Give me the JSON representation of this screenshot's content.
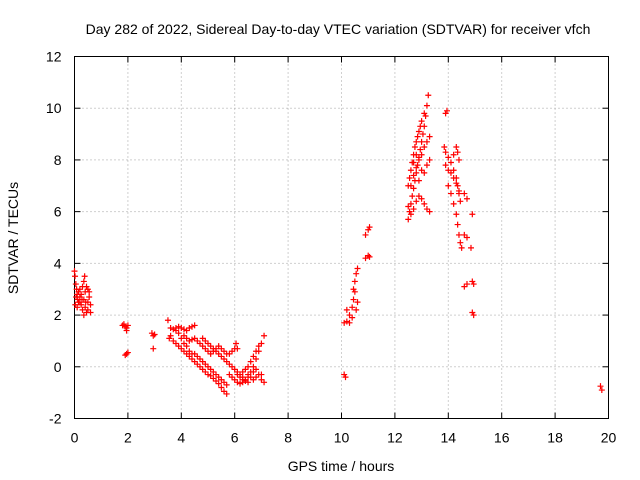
{
  "chart_data": {
    "type": "scatter",
    "title": "Day 282 of 2022, Sidereal Day-to-day VTEC variation (SDTVAR) for receiver vfch",
    "xlabel": "GPS time / hours",
    "ylabel": "SDTVAR / TECUs",
    "xlim": [
      0,
      20
    ],
    "ylim": [
      -2,
      12
    ],
    "xticks": [
      0,
      2,
      4,
      6,
      8,
      10,
      12,
      14,
      16,
      18,
      20
    ],
    "yticks": [
      -2,
      0,
      2,
      4,
      6,
      8,
      10,
      12
    ],
    "grid": true,
    "marker": "+",
    "color": "#ff0000",
    "series": [
      {
        "name": "SDTVAR",
        "points": [
          [
            0.0,
            3.7
          ],
          [
            0.02,
            3.5
          ],
          [
            0.05,
            3.2
          ],
          [
            0.08,
            3.0
          ],
          [
            0.1,
            2.8
          ],
          [
            0.12,
            2.6
          ],
          [
            0.15,
            2.5
          ],
          [
            0.03,
            2.4
          ],
          [
            0.06,
            2.7
          ],
          [
            0.1,
            2.3
          ],
          [
            0.15,
            2.9
          ],
          [
            0.2,
            2.5
          ],
          [
            0.25,
            2.8
          ],
          [
            0.3,
            3.1
          ],
          [
            0.35,
            3.3
          ],
          [
            0.38,
            3.5
          ],
          [
            0.2,
            3.0
          ],
          [
            0.25,
            2.4
          ],
          [
            0.3,
            2.2
          ],
          [
            0.35,
            2.6
          ],
          [
            0.4,
            2.9
          ],
          [
            0.45,
            3.1
          ],
          [
            0.4,
            2.3
          ],
          [
            0.45,
            2.1
          ],
          [
            0.5,
            2.2
          ],
          [
            0.5,
            2.5
          ],
          [
            0.55,
            2.7
          ],
          [
            0.6,
            2.4
          ],
          [
            0.6,
            2.1
          ],
          [
            0.55,
            2.9
          ],
          [
            0.5,
            3.0
          ],
          [
            0.35,
            2.0
          ],
          [
            0.2,
            2.7
          ],
          [
            0.28,
            2.6
          ],
          [
            0.42,
            2.5
          ],
          [
            1.8,
            1.6
          ],
          [
            1.85,
            1.65
          ],
          [
            1.9,
            1.55
          ],
          [
            1.95,
            1.5
          ],
          [
            2.0,
            1.6
          ],
          [
            1.95,
            1.4
          ],
          [
            1.9,
            0.45
          ],
          [
            1.95,
            0.5
          ],
          [
            2.0,
            0.55
          ],
          [
            2.9,
            1.3
          ],
          [
            2.95,
            1.2
          ],
          [
            3.0,
            1.25
          ],
          [
            2.95,
            0.7
          ],
          [
            3.5,
            1.8
          ],
          [
            3.55,
            1.1
          ],
          [
            3.6,
            1.2
          ],
          [
            3.7,
            1.0
          ],
          [
            3.8,
            0.9
          ],
          [
            3.9,
            0.8
          ],
          [
            4.0,
            0.7
          ],
          [
            4.1,
            0.6
          ],
          [
            4.2,
            0.5
          ],
          [
            4.3,
            0.4
          ],
          [
            4.4,
            0.3
          ],
          [
            4.5,
            0.2
          ],
          [
            4.6,
            0.1
          ],
          [
            4.7,
            0.0
          ],
          [
            4.8,
            -0.1
          ],
          [
            4.9,
            -0.2
          ],
          [
            5.0,
            -0.3
          ],
          [
            5.1,
            -0.35
          ],
          [
            5.2,
            -0.45
          ],
          [
            5.3,
            -0.55
          ],
          [
            5.4,
            -0.65
          ],
          [
            5.5,
            -0.8
          ],
          [
            5.6,
            -0.95
          ],
          [
            5.7,
            -1.05
          ],
          [
            3.8,
            1.4
          ],
          [
            3.9,
            1.3
          ],
          [
            4.0,
            1.1
          ],
          [
            4.1,
            0.9
          ],
          [
            4.2,
            0.8
          ],
          [
            4.3,
            0.6
          ],
          [
            4.4,
            0.5
          ],
          [
            4.5,
            0.5
          ],
          [
            4.6,
            0.4
          ],
          [
            4.7,
            0.3
          ],
          [
            4.8,
            0.2
          ],
          [
            4.9,
            0.1
          ],
          [
            5.0,
            0.0
          ],
          [
            5.1,
            -0.1
          ],
          [
            5.2,
            -0.2
          ],
          [
            5.3,
            -0.3
          ],
          [
            5.4,
            -0.4
          ],
          [
            5.5,
            -0.5
          ],
          [
            5.6,
            -0.6
          ],
          [
            5.7,
            -0.7
          ],
          [
            3.6,
            1.5
          ],
          [
            3.7,
            1.45
          ],
          [
            3.8,
            1.5
          ],
          [
            3.9,
            1.55
          ],
          [
            4.0,
            1.5
          ],
          [
            4.1,
            1.45
          ],
          [
            4.2,
            1.4
          ],
          [
            4.3,
            1.5
          ],
          [
            4.4,
            1.55
          ],
          [
            4.5,
            1.6
          ],
          [
            4.1,
            1.2
          ],
          [
            4.2,
            1.1
          ],
          [
            4.3,
            1.0
          ],
          [
            4.4,
            1.05
          ],
          [
            4.5,
            1.1
          ],
          [
            4.6,
            1.0
          ],
          [
            4.7,
            0.9
          ],
          [
            4.8,
            0.8
          ],
          [
            4.8,
            1.1
          ],
          [
            4.9,
            1.0
          ],
          [
            5.0,
            0.9
          ],
          [
            5.1,
            0.8
          ],
          [
            5.2,
            0.7
          ],
          [
            5.3,
            0.6
          ],
          [
            5.4,
            0.5
          ],
          [
            5.5,
            0.4
          ],
          [
            5.6,
            0.3
          ],
          [
            5.7,
            0.2
          ],
          [
            5.8,
            0.1
          ],
          [
            5.9,
            0.0
          ],
          [
            6.0,
            -0.1
          ],
          [
            6.1,
            -0.3
          ],
          [
            6.2,
            -0.4
          ],
          [
            6.3,
            -0.5
          ],
          [
            6.4,
            -0.55
          ],
          [
            6.5,
            -0.6
          ],
          [
            4.9,
            0.7
          ],
          [
            5.0,
            0.6
          ],
          [
            5.1,
            0.5
          ],
          [
            5.2,
            0.6
          ],
          [
            5.3,
            0.7
          ],
          [
            5.4,
            0.8
          ],
          [
            5.5,
            0.7
          ],
          [
            5.6,
            0.6
          ],
          [
            5.7,
            0.5
          ],
          [
            5.8,
            0.5
          ],
          [
            5.9,
            0.6
          ],
          [
            6.0,
            0.7
          ],
          [
            6.05,
            0.9
          ],
          [
            6.1,
            0.7
          ],
          [
            5.8,
            -0.3
          ],
          [
            5.9,
            -0.4
          ],
          [
            6.0,
            -0.5
          ],
          [
            6.1,
            -0.6
          ],
          [
            6.2,
            -0.65
          ],
          [
            6.3,
            -0.6
          ],
          [
            6.4,
            -0.5
          ],
          [
            6.5,
            -0.4
          ],
          [
            6.6,
            -0.2
          ],
          [
            6.7,
            0.0
          ],
          [
            6.8,
            0.3
          ],
          [
            6.9,
            0.6
          ],
          [
            7.0,
            0.9
          ],
          [
            7.1,
            1.2
          ],
          [
            6.3,
            -0.2
          ],
          [
            6.4,
            -0.1
          ],
          [
            6.5,
            0.0
          ],
          [
            6.6,
            0.2
          ],
          [
            6.7,
            0.4
          ],
          [
            6.8,
            0.6
          ],
          [
            6.9,
            0.8
          ],
          [
            6.1,
            -0.2
          ],
          [
            6.2,
            -0.3
          ],
          [
            6.3,
            -0.4
          ],
          [
            6.5,
            -0.3
          ],
          [
            6.6,
            -0.4
          ],
          [
            6.7,
            -0.5
          ],
          [
            6.8,
            -0.4
          ],
          [
            6.9,
            -0.3
          ],
          [
            7.0,
            -0.5
          ],
          [
            7.1,
            -0.6
          ],
          [
            6.7,
            -0.2
          ],
          [
            6.8,
            -0.1
          ],
          [
            7.0,
            -0.3
          ],
          [
            10.1,
            -0.3
          ],
          [
            10.15,
            -0.4
          ],
          [
            10.1,
            1.7
          ],
          [
            10.2,
            1.75
          ],
          [
            10.3,
            1.7
          ],
          [
            10.2,
            2.2
          ],
          [
            10.3,
            2.0
          ],
          [
            10.4,
            2.3
          ],
          [
            10.45,
            2.6
          ],
          [
            10.5,
            2.9
          ],
          [
            10.4,
            1.9
          ],
          [
            10.45,
            3.0
          ],
          [
            10.5,
            3.3
          ],
          [
            10.55,
            3.6
          ],
          [
            10.6,
            3.8
          ],
          [
            10.6,
            2.5
          ],
          [
            10.55,
            2.2
          ],
          [
            10.9,
            4.2
          ],
          [
            11.0,
            4.3
          ],
          [
            11.05,
            4.25
          ],
          [
            10.9,
            5.1
          ],
          [
            11.0,
            5.3
          ],
          [
            11.05,
            5.4
          ],
          [
            12.5,
            5.7
          ],
          [
            12.55,
            6.0
          ],
          [
            12.6,
            6.3
          ],
          [
            12.65,
            6.6
          ],
          [
            12.7,
            6.9
          ],
          [
            12.75,
            7.2
          ],
          [
            12.8,
            7.5
          ],
          [
            12.85,
            7.8
          ],
          [
            12.9,
            8.1
          ],
          [
            12.95,
            8.4
          ],
          [
            13.0,
            8.7
          ],
          [
            13.05,
            9.0
          ],
          [
            13.1,
            9.3
          ],
          [
            13.15,
            9.7
          ],
          [
            13.2,
            10.1
          ],
          [
            13.25,
            10.5
          ],
          [
            12.5,
            7.0
          ],
          [
            12.55,
            7.3
          ],
          [
            12.6,
            7.6
          ],
          [
            12.65,
            7.9
          ],
          [
            12.7,
            8.2
          ],
          [
            12.75,
            8.5
          ],
          [
            12.8,
            8.7
          ],
          [
            12.85,
            8.9
          ],
          [
            12.9,
            9.1
          ],
          [
            12.95,
            9.3
          ],
          [
            13.0,
            9.5
          ],
          [
            13.1,
            9.8
          ],
          [
            12.5,
            6.2
          ],
          [
            12.6,
            5.9
          ],
          [
            12.7,
            6.1
          ],
          [
            12.8,
            6.4
          ],
          [
            12.9,
            6.6
          ],
          [
            13.0,
            6.5
          ],
          [
            13.1,
            6.3
          ],
          [
            13.2,
            6.1
          ],
          [
            13.3,
            6.0
          ],
          [
            12.6,
            7.0
          ],
          [
            12.7,
            7.4
          ],
          [
            12.8,
            7.7
          ],
          [
            12.9,
            8.0
          ],
          [
            13.0,
            8.2
          ],
          [
            13.1,
            8.5
          ],
          [
            13.2,
            8.7
          ],
          [
            13.3,
            8.9
          ],
          [
            13.1,
            7.5
          ],
          [
            13.2,
            7.8
          ],
          [
            13.3,
            8.0
          ],
          [
            12.9,
            7.2
          ],
          [
            13.0,
            7.6
          ],
          [
            12.7,
            7.9
          ],
          [
            12.8,
            8.2
          ],
          [
            13.9,
            9.8
          ],
          [
            13.95,
            9.9
          ],
          [
            13.85,
            8.5
          ],
          [
            13.9,
            8.3
          ],
          [
            14.0,
            8.1
          ],
          [
            14.1,
            7.9
          ],
          [
            14.2,
            7.6
          ],
          [
            14.3,
            7.3
          ],
          [
            14.35,
            7.0
          ],
          [
            14.4,
            6.7
          ],
          [
            14.45,
            6.4
          ],
          [
            13.9,
            7.8
          ],
          [
            14.0,
            7.6
          ],
          [
            14.1,
            7.5
          ],
          [
            14.2,
            7.3
          ],
          [
            14.3,
            7.1
          ],
          [
            14.4,
            6.8
          ],
          [
            14.2,
            8.2
          ],
          [
            14.3,
            8.5
          ],
          [
            14.35,
            8.3
          ],
          [
            14.4,
            8.0
          ],
          [
            14.0,
            7.0
          ],
          [
            14.1,
            6.7
          ],
          [
            14.2,
            6.3
          ],
          [
            14.3,
            5.9
          ],
          [
            14.35,
            5.5
          ],
          [
            14.4,
            5.1
          ],
          [
            14.45,
            4.8
          ],
          [
            14.5,
            4.6
          ],
          [
            14.6,
            6.7
          ],
          [
            14.7,
            6.5
          ],
          [
            14.6,
            5.1
          ],
          [
            14.7,
            5.0
          ],
          [
            14.6,
            3.1
          ],
          [
            14.7,
            3.2
          ],
          [
            14.9,
            5.9
          ],
          [
            14.85,
            4.6
          ],
          [
            14.9,
            3.3
          ],
          [
            14.95,
            3.2
          ],
          [
            14.9,
            2.1
          ],
          [
            14.95,
            2.0
          ],
          [
            19.7,
            -0.75
          ],
          [
            19.75,
            -0.9
          ]
        ]
      }
    ]
  }
}
